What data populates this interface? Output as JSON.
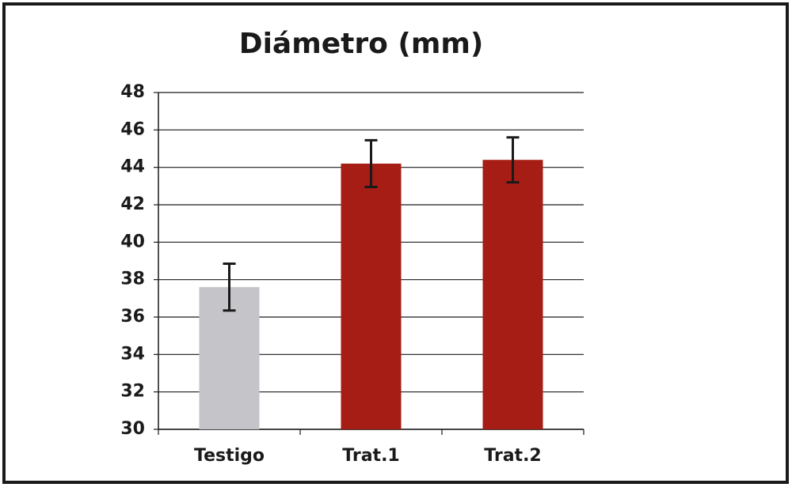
{
  "chart_data": {
    "type": "bar",
    "title": "Diámetro (mm)",
    "categories": [
      "Testigo",
      "Trat.1",
      "Trat.2"
    ],
    "values": [
      37.6,
      44.2,
      44.4
    ],
    "errors": [
      1.25,
      1.25,
      1.2
    ],
    "colors": [
      "#c4c4c9",
      "#a51d15",
      "#a51d15"
    ],
    "ylim": [
      30,
      48
    ],
    "yticks": [
      30,
      32,
      34,
      36,
      38,
      40,
      42,
      44,
      46,
      48
    ],
    "grid": true
  }
}
